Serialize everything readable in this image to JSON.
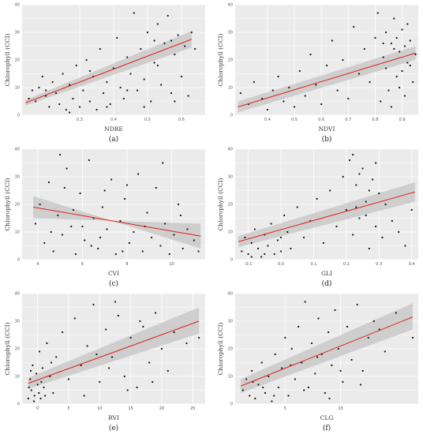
{
  "style": {
    "panel_bg": "#ebebeb",
    "grid_color": "#ffffff",
    "point_color": "#111111",
    "fit_color": "#e0201c",
    "band_color": "#c9c9c9"
  },
  "chart_data": [
    {
      "type": "scatter",
      "caption": "(a)",
      "xlabel": "NDRE",
      "ylabel": "Chlorophyll (CCI)",
      "xlim": [
        0.13,
        0.67
      ],
      "ylim": [
        0,
        40
      ],
      "xticks": [
        "0.3",
        "0.4",
        "0.5",
        "0.6"
      ],
      "yticks": [
        "0",
        "10",
        "20",
        "30",
        "40"
      ],
      "grid": true,
      "fit": {
        "x": [
          0.14,
          0.63
        ],
        "y": [
          4.5,
          27.5
        ],
        "ci": [
          [
            3.5,
            5.5
          ],
          [
            24.5,
            30.5
          ]
        ]
      },
      "points": [
        [
          0.15,
          6
        ],
        [
          0.16,
          9
        ],
        [
          0.17,
          5
        ],
        [
          0.18,
          10
        ],
        [
          0.19,
          14
        ],
        [
          0.2,
          7
        ],
        [
          0.21,
          3
        ],
        [
          0.22,
          12
        ],
        [
          0.23,
          8
        ],
        [
          0.24,
          4
        ],
        [
          0.25,
          15
        ],
        [
          0.26,
          2
        ],
        [
          0.27,
          11
        ],
        [
          0.28,
          6
        ],
        [
          0.29,
          18
        ],
        [
          0.3,
          3
        ],
        [
          0.31,
          9
        ],
        [
          0.32,
          20
        ],
        [
          0.33,
          5
        ],
        [
          0.34,
          14
        ],
        [
          0.35,
          2
        ],
        [
          0.36,
          24
        ],
        [
          0.37,
          8
        ],
        [
          0.38,
          12
        ],
        [
          0.39,
          4
        ],
        [
          0.4,
          17
        ],
        [
          0.41,
          28
        ],
        [
          0.42,
          10
        ],
        [
          0.43,
          6
        ],
        [
          0.44,
          21
        ],
        [
          0.45,
          15
        ],
        [
          0.46,
          37
        ],
        [
          0.47,
          9
        ],
        [
          0.48,
          24
        ],
        [
          0.49,
          13
        ],
        [
          0.5,
          30
        ],
        [
          0.51,
          5
        ],
        [
          0.52,
          19
        ],
        [
          0.53,
          33
        ],
        [
          0.54,
          11
        ],
        [
          0.55,
          26
        ],
        [
          0.56,
          36
        ],
        [
          0.57,
          8
        ],
        [
          0.58,
          22
        ],
        [
          0.59,
          29
        ],
        [
          0.6,
          14
        ],
        [
          0.61,
          25
        ],
        [
          0.62,
          7
        ],
        [
          0.63,
          30
        ],
        [
          0.64,
          24
        ],
        [
          0.2,
          9
        ],
        [
          0.27,
          1
        ],
        [
          0.33,
          16
        ],
        [
          0.38,
          3
        ],
        [
          0.44,
          9
        ],
        [
          0.49,
          3
        ],
        [
          0.53,
          18
        ],
        [
          0.57,
          27
        ],
        [
          0.52,
          27
        ],
        [
          0.58,
          5
        ]
      ]
    },
    {
      "type": "scatter",
      "caption": "(b)",
      "xlabel": "NDVI",
      "ylabel": "Chlorophyll (CCI)",
      "xlim": [
        0.28,
        0.96
      ],
      "ylim": [
        0,
        40
      ],
      "xticks": [
        "0.4",
        "0.5",
        "0.6",
        "0.7",
        "0.8",
        "0.9"
      ],
      "yticks": [
        "0",
        "10",
        "20",
        "30",
        "40"
      ],
      "grid": true,
      "fit": {
        "x": [
          0.29,
          0.95
        ],
        "y": [
          3,
          22.5
        ],
        "ci": [
          [
            1,
            5
          ],
          [
            20,
            25
          ]
        ]
      },
      "points": [
        [
          0.3,
          8
        ],
        [
          0.33,
          4
        ],
        [
          0.35,
          12
        ],
        [
          0.38,
          6
        ],
        [
          0.4,
          2
        ],
        [
          0.42,
          9
        ],
        [
          0.44,
          14
        ],
        [
          0.46,
          5
        ],
        [
          0.48,
          10
        ],
        [
          0.5,
          3
        ],
        [
          0.52,
          16
        ],
        [
          0.54,
          7
        ],
        [
          0.56,
          22
        ],
        [
          0.58,
          11
        ],
        [
          0.6,
          4
        ],
        [
          0.62,
          18
        ],
        [
          0.64,
          27
        ],
        [
          0.66,
          9
        ],
        [
          0.68,
          20
        ],
        [
          0.7,
          6
        ],
        [
          0.72,
          32
        ],
        [
          0.74,
          15
        ],
        [
          0.76,
          24
        ],
        [
          0.78,
          12
        ],
        [
          0.8,
          28
        ],
        [
          0.81,
          37
        ],
        [
          0.82,
          5
        ],
        [
          0.83,
          21
        ],
        [
          0.84,
          30
        ],
        [
          0.85,
          9
        ],
        [
          0.86,
          26
        ],
        [
          0.87,
          35
        ],
        [
          0.88,
          14
        ],
        [
          0.89,
          23
        ],
        [
          0.9,
          31
        ],
        [
          0.91,
          7
        ],
        [
          0.92,
          19
        ],
        [
          0.93,
          27
        ],
        [
          0.94,
          12
        ],
        [
          0.95,
          22
        ],
        [
          0.84,
          17
        ],
        [
          0.86,
          3
        ],
        [
          0.88,
          28
        ],
        [
          0.9,
          16
        ],
        [
          0.92,
          33
        ],
        [
          0.87,
          24
        ],
        [
          0.89,
          10
        ],
        [
          0.83,
          26
        ],
        [
          0.91,
          25
        ],
        [
          0.93,
          18
        ]
      ]
    },
    {
      "type": "scatter",
      "caption": "(c)",
      "xlabel": "CVI",
      "ylabel": "Chlorophyll (CCI)",
      "xlim": [
        3.3,
        11.5
      ],
      "ylim": [
        0,
        40
      ],
      "xticks": [
        "4",
        "6",
        "8",
        "10"
      ],
      "yticks": [
        "0",
        "10",
        "20",
        "30",
        "40"
      ],
      "grid": true,
      "fit": {
        "x": [
          3.8,
          11.3
        ],
        "y": [
          19,
          8.5
        ],
        "ci": [
          [
            23,
            15
          ],
          [
            4,
            13
          ]
        ]
      },
      "points": [
        [
          3.9,
          13
        ],
        [
          4.1,
          20
        ],
        [
          4.3,
          6
        ],
        [
          4.5,
          28
        ],
        [
          4.7,
          3
        ],
        [
          4.9,
          16
        ],
        [
          5.1,
          9
        ],
        [
          5.3,
          33
        ],
        [
          5.5,
          12
        ],
        [
          5.7,
          2
        ],
        [
          5.9,
          24
        ],
        [
          6.1,
          7
        ],
        [
          6.3,
          36
        ],
        [
          6.5,
          15
        ],
        [
          6.7,
          4
        ],
        [
          6.9,
          19
        ],
        [
          7.1,
          11
        ],
        [
          7.3,
          29
        ],
        [
          7.5,
          2
        ],
        [
          7.7,
          14
        ],
        [
          7.9,
          22
        ],
        [
          8.1,
          6
        ],
        [
          8.3,
          10
        ],
        [
          8.5,
          31
        ],
        [
          8.7,
          3
        ],
        [
          8.9,
          17
        ],
        [
          9.1,
          8
        ],
        [
          9.3,
          26
        ],
        [
          9.5,
          5
        ],
        [
          9.7,
          13
        ],
        [
          9.9,
          2
        ],
        [
          10.1,
          9
        ],
        [
          10.3,
          20
        ],
        [
          10.5,
          4
        ],
        [
          10.7,
          11
        ],
        [
          11.0,
          7
        ],
        [
          11.2,
          3
        ],
        [
          6.0,
          12
        ],
        [
          5.6,
          18
        ],
        [
          7.0,
          25
        ],
        [
          4.6,
          10
        ],
        [
          5.2,
          26
        ],
        [
          6.4,
          5
        ],
        [
          7.8,
          3
        ],
        [
          8.8,
          12
        ],
        [
          9.6,
          35
        ],
        [
          10.4,
          16
        ],
        [
          6.8,
          8
        ],
        [
          8.0,
          27
        ],
        [
          5.0,
          38
        ]
      ]
    },
    {
      "type": "scatter",
      "caption": "(d)",
      "xlabel": "GLI",
      "ylabel": "Chlorophyll (CCI)",
      "xlim": [
        -0.14,
        0.42
      ],
      "ylim": [
        0,
        40
      ],
      "xticks": [
        "-0.1",
        "0.0",
        "0.1",
        "0.2",
        "0.3",
        "0.4"
      ],
      "yticks": [
        "0",
        "10",
        "20",
        "30",
        "40"
      ],
      "grid": true,
      "fit": {
        "x": [
          -0.13,
          0.41
        ],
        "y": [
          6.5,
          24.5
        ],
        "ci": [
          [
            4.5,
            8.5
          ],
          [
            21,
            28
          ]
        ]
      },
      "points": [
        [
          -0.12,
          3
        ],
        [
          -0.11,
          8
        ],
        [
          -0.1,
          2
        ],
        [
          -0.09,
          6
        ],
        [
          -0.08,
          11
        ],
        [
          -0.07,
          4
        ],
        [
          -0.06,
          1
        ],
        [
          -0.05,
          9
        ],
        [
          -0.04,
          5
        ],
        [
          -0.03,
          13
        ],
        [
          -0.02,
          2
        ],
        [
          -0.01,
          7
        ],
        [
          0.0,
          3
        ],
        [
          0.01,
          16
        ],
        [
          0.02,
          10
        ],
        [
          0.03,
          4
        ],
        [
          0.05,
          19
        ],
        [
          0.07,
          8
        ],
        [
          0.09,
          14
        ],
        [
          0.11,
          22
        ],
        [
          0.13,
          6
        ],
        [
          0.15,
          25
        ],
        [
          0.17,
          12
        ],
        [
          0.19,
          30
        ],
        [
          0.2,
          18
        ],
        [
          0.21,
          36
        ],
        [
          0.22,
          9
        ],
        [
          0.23,
          27
        ],
        [
          0.24,
          15
        ],
        [
          0.25,
          33
        ],
        [
          0.26,
          21
        ],
        [
          0.27,
          4
        ],
        [
          0.28,
          29
        ],
        [
          0.29,
          12
        ],
        [
          0.3,
          24
        ],
        [
          0.31,
          8
        ],
        [
          0.32,
          20
        ],
        [
          0.34,
          14
        ],
        [
          0.36,
          10
        ],
        [
          0.38,
          5
        ],
        [
          0.4,
          18
        ],
        [
          -0.05,
          2
        ],
        [
          0.0,
          8
        ],
        [
          0.22,
          38
        ],
        [
          0.24,
          31
        ],
        [
          0.27,
          25
        ],
        [
          0.23,
          19
        ],
        [
          0.29,
          35
        ],
        [
          -0.09,
          1
        ],
        [
          0.26,
          16
        ]
      ]
    },
    {
      "type": "scatter",
      "caption": "(e)",
      "xlabel": "RVI",
      "ylabel": "Chlorophyll (CCI)",
      "xlim": [
        -2.5,
        27
      ],
      "ylim": [
        0,
        40
      ],
      "xticks": [
        "0",
        "5",
        "10",
        "15",
        "20",
        "25"
      ],
      "yticks": [
        "0",
        "10",
        "20",
        "30",
        "40"
      ],
      "grid": true,
      "fit": {
        "x": [
          -1.5,
          26
        ],
        "y": [
          7.5,
          30
        ],
        "ci": [
          [
            5.5,
            9.5
          ],
          [
            25.5,
            35
          ]
        ]
      },
      "points": [
        [
          -1.5,
          2
        ],
        [
          -1.2,
          9
        ],
        [
          -1.0,
          5
        ],
        [
          -0.8,
          14
        ],
        [
          -0.5,
          3
        ],
        [
          -0.2,
          11
        ],
        [
          0.0,
          7
        ],
        [
          0.3,
          19
        ],
        [
          0.5,
          2
        ],
        [
          0.8,
          13
        ],
        [
          1.0,
          6
        ],
        [
          1.5,
          22
        ],
        [
          2.0,
          10
        ],
        [
          2.5,
          4
        ],
        [
          3.0,
          17
        ],
        [
          4.0,
          26
        ],
        [
          5.0,
          9
        ],
        [
          6.0,
          31
        ],
        [
          7.0,
          14
        ],
        [
          8.0,
          21
        ],
        [
          9.0,
          36
        ],
        [
          10.0,
          8
        ],
        [
          11.0,
          27
        ],
        [
          12.0,
          17
        ],
        [
          13.0,
          32
        ],
        [
          14.0,
          10
        ],
        [
          15.0,
          24
        ],
        [
          16.0,
          6
        ],
        [
          17.0,
          28
        ],
        [
          18.0,
          15
        ],
        [
          19.0,
          33
        ],
        [
          20.0,
          20
        ],
        [
          21.0,
          12
        ],
        [
          22.0,
          26
        ],
        [
          24.0,
          22
        ],
        [
          26.0,
          24
        ],
        [
          -1.4,
          6
        ],
        [
          -0.6,
          1
        ],
        [
          0.2,
          4
        ],
        [
          0.6,
          8
        ],
        [
          1.2,
          3
        ],
        [
          -1.1,
          12
        ],
        [
          2.2,
          15
        ],
        [
          9.5,
          18
        ],
        [
          12.5,
          37
        ],
        [
          14.5,
          5
        ],
        [
          16.5,
          30
        ],
        [
          18.5,
          8
        ],
        [
          11.5,
          13
        ],
        [
          7.5,
          3
        ]
      ]
    },
    {
      "type": "scatter",
      "caption": "(f)",
      "xlabel": "CLG",
      "ylabel": "Chlorophyll (CCI)",
      "xlim": [
        0.5,
        17
      ],
      "ylim": [
        0,
        40
      ],
      "xticks": [
        "5",
        "10"
      ],
      "yticks": [
        "0",
        "10",
        "20",
        "30",
        "40"
      ],
      "grid": true,
      "fit": {
        "x": [
          1,
          16.5
        ],
        "y": [
          6.5,
          31.5
        ],
        "ci": [
          [
            4,
            9
          ],
          [
            27,
            36.5
          ]
        ]
      },
      "points": [
        [
          1.2,
          5
        ],
        [
          1.5,
          9
        ],
        [
          1.8,
          3
        ],
        [
          2.0,
          12
        ],
        [
          2.3,
          2
        ],
        [
          2.6,
          7
        ],
        [
          2.9,
          15
        ],
        [
          3.2,
          4
        ],
        [
          3.5,
          10
        ],
        [
          3.8,
          1
        ],
        [
          4.1,
          18
        ],
        [
          4.4,
          6
        ],
        [
          4.7,
          13
        ],
        [
          5.0,
          24
        ],
        [
          5.3,
          3
        ],
        [
          5.6,
          20
        ],
        [
          5.9,
          9
        ],
        [
          6.2,
          28
        ],
        [
          6.5,
          15
        ],
        [
          6.8,
          37
        ],
        [
          7.1,
          6
        ],
        [
          7.4,
          22
        ],
        [
          7.7,
          11
        ],
        [
          8.0,
          31
        ],
        [
          8.3,
          18
        ],
        [
          8.6,
          4
        ],
        [
          8.9,
          26
        ],
        [
          9.2,
          14
        ],
        [
          9.5,
          34
        ],
        [
          9.8,
          20
        ],
        [
          10.2,
          8
        ],
        [
          10.6,
          28
        ],
        [
          11.0,
          16
        ],
        [
          11.5,
          36
        ],
        [
          12.0,
          12
        ],
        [
          12.5,
          24
        ],
        [
          13.0,
          30
        ],
        [
          14.0,
          19
        ],
        [
          15.0,
          33
        ],
        [
          16.5,
          24
        ],
        [
          2.1,
          8
        ],
        [
          3.0,
          6
        ],
        [
          4.0,
          3
        ],
        [
          5.5,
          14
        ],
        [
          6.7,
          5
        ],
        [
          7.9,
          17
        ],
        [
          9.0,
          2
        ],
        [
          10.0,
          12
        ],
        [
          11.8,
          7
        ],
        [
          13.5,
          27
        ]
      ]
    }
  ]
}
